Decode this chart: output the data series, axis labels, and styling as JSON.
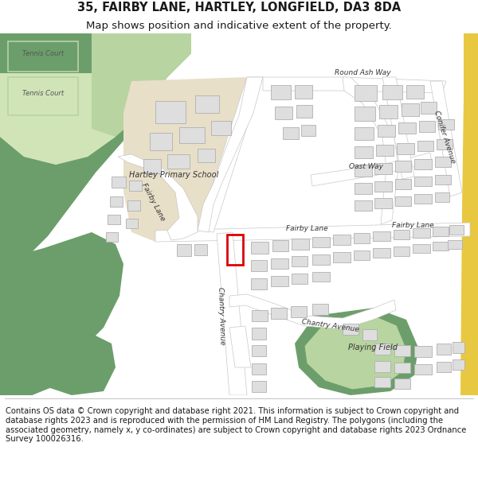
{
  "title_line1": "35, FAIRBY LANE, HARTLEY, LONGFIELD, DA3 8DA",
  "title_line2": "Map shows position and indicative extent of the property.",
  "footer_text": "Contains OS data © Crown copyright and database right 2021. This information is subject to Crown copyright and database rights 2023 and is reproduced with the permission of HM Land Registry. The polygons (including the associated geometry, namely x, y co-ordinates) are subject to Crown copyright and database rights 2023 Ordnance Survey 100026316.",
  "bg_color": "#ffffff",
  "map_bg": "#f2f2f2",
  "green_dark": "#6b9e6b",
  "green_light": "#b8d4a0",
  "road_color": "#ffffff",
  "road_outline": "#c8c8c8",
  "building_fill": "#dedede",
  "building_outline": "#b0b0b0",
  "school_fill": "#e8dfc8",
  "highlight_color": "#dd0000",
  "road_yellow": "#e8c840",
  "title_fontsize": 10.5,
  "subtitle_fontsize": 9.5,
  "footer_fontsize": 7.2,
  "label_fontsize": 6.5
}
